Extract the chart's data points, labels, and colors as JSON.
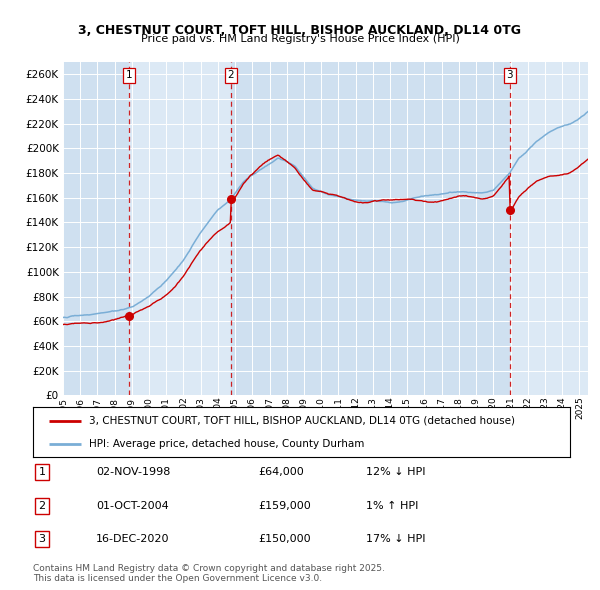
{
  "title": "3, CHESTNUT COURT, TOFT HILL, BISHOP AUCKLAND, DL14 0TG",
  "subtitle": "Price paid vs. HM Land Registry's House Price Index (HPI)",
  "legend_red": "3, CHESTNUT COURT, TOFT HILL, BISHOP AUCKLAND, DL14 0TG (detached house)",
  "legend_blue": "HPI: Average price, detached house, County Durham",
  "footer": "Contains HM Land Registry data © Crown copyright and database right 2025.\nThis data is licensed under the Open Government Licence v3.0.",
  "sale_dates": [
    "02-NOV-1998",
    "01-OCT-2004",
    "16-DEC-2020"
  ],
  "sale_prices": [
    64000,
    159000,
    150000
  ],
  "sale_hpi_pct": [
    "12% ↓ HPI",
    "1% ↑ HPI",
    "17% ↓ HPI"
  ],
  "sale_years": [
    1998.84,
    2004.75,
    2020.96
  ],
  "ylim": [
    0,
    270000
  ],
  "xlim_start": 1995.0,
  "xlim_end": 2025.5,
  "bg_color": "#dce9f5",
  "red_color": "#cc0000",
  "blue_color": "#7aaed6",
  "grid_color": "#ffffff",
  "dashed_color": "#cc0000",
  "shade_colors": [
    "#cfe0f0",
    "#dce9f5"
  ],
  "shade_regions": [
    [
      1995.0,
      1998.84
    ],
    [
      1998.84,
      2004.75
    ],
    [
      2004.75,
      2020.96
    ],
    [
      2020.96,
      2025.5
    ]
  ]
}
